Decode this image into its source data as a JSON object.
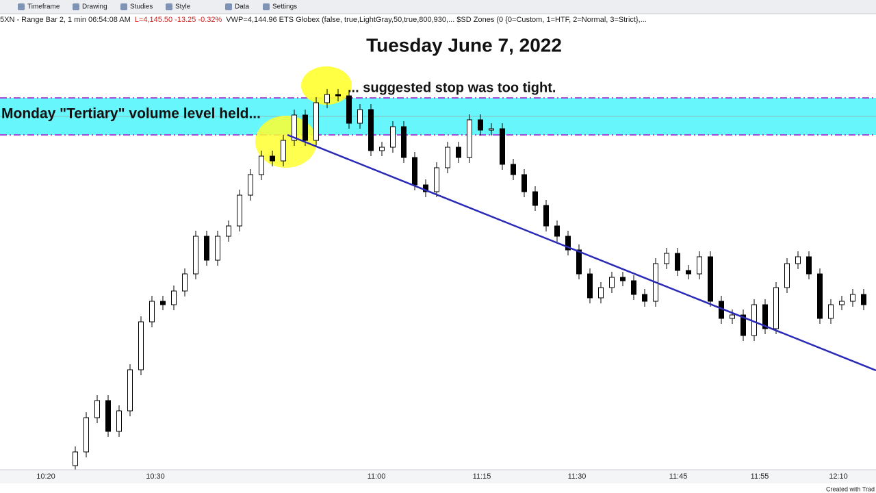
{
  "toolbar": {
    "items": [
      "Timeframe",
      "Drawing",
      "Studies",
      "Style",
      "Data",
      "Settings"
    ]
  },
  "info_bar": {
    "symbol": "5XN - Range Bar 2, 1 min  06:54:08 AM",
    "quote": "L=4,145.50  -13.25  -0.32%",
    "studies": "VWP=4,144.96  ETS Globex (false,  true,LightGray,50,true,800,930,...   $SD Zones (0  {0=Custom, 1=HTF, 2=Normal, 3=Strict},..."
  },
  "chart_data": {
    "type": "candlestick",
    "title": "Tuesday June 7, 2022",
    "annotations": [
      "Monday \"Tertiary\" volume level held...",
      "... suggested stop was too tight."
    ],
    "x_labels": [
      "10:20",
      "10:30",
      "11:00",
      "11:15",
      "11:30",
      "11:45",
      "11:55",
      "12:10"
    ],
    "ylim": [
      4120,
      4180
    ],
    "up_color": "#ffffff",
    "down_color": "#000000",
    "candles": [
      [
        4121.0,
        4123.8,
        4120.2,
        4123.0
      ],
      [
        4123.0,
        4128.8,
        4122.2,
        4128.0
      ],
      [
        4128.0,
        4131.3,
        4127.2,
        4130.5
      ],
      [
        4130.5,
        4131.3,
        4125.2,
        4126.0
      ],
      [
        4126.0,
        4129.8,
        4125.2,
        4129.0
      ],
      [
        4129.0,
        4135.8,
        4128.2,
        4135.0
      ],
      [
        4135.0,
        4142.8,
        4134.2,
        4142.0
      ],
      [
        4142.0,
        4145.8,
        4141.2,
        4145.0
      ],
      [
        4145.0,
        4145.8,
        4143.7,
        4144.5
      ],
      [
        4144.5,
        4147.3,
        4143.7,
        4146.5
      ],
      [
        4146.5,
        4149.8,
        4145.7,
        4149.0
      ],
      [
        4149.0,
        4155.3,
        4148.2,
        4154.5
      ],
      [
        4154.5,
        4155.3,
        4150.2,
        4151.0
      ],
      [
        4151.0,
        4155.3,
        4150.2,
        4154.5
      ],
      [
        4154.5,
        4156.8,
        4153.7,
        4156.0
      ],
      [
        4156.0,
        4161.3,
        4155.2,
        4160.5
      ],
      [
        4160.5,
        4164.3,
        4159.7,
        4163.5
      ],
      [
        4163.5,
        4167.0,
        4162.7,
        4166.2
      ],
      [
        4166.2,
        4167.0,
        4164.7,
        4165.5
      ],
      [
        4165.5,
        4169.3,
        4164.7,
        4168.5
      ],
      [
        4168.5,
        4173.0,
        4167.7,
        4172.2
      ],
      [
        4172.2,
        4173.0,
        4167.7,
        4168.5
      ],
      [
        4168.5,
        4174.8,
        4167.7,
        4174.0
      ],
      [
        4174.0,
        4176.0,
        4173.2,
        4175.2
      ],
      [
        4175.2,
        4176.0,
        4174.2,
        4175.0
      ],
      [
        4175.0,
        4175.8,
        4170.2,
        4171.0
      ],
      [
        4171.0,
        4173.8,
        4170.2,
        4173.0
      ],
      [
        4173.0,
        4173.8,
        4166.2,
        4167.0
      ],
      [
        4167.0,
        4168.3,
        4166.2,
        4167.5
      ],
      [
        4167.5,
        4171.3,
        4166.7,
        4170.5
      ],
      [
        4170.5,
        4171.3,
        4165.2,
        4166.0
      ],
      [
        4166.0,
        4166.8,
        4161.2,
        4162.0
      ],
      [
        4162.0,
        4162.8,
        4160.2,
        4161.0
      ],
      [
        4161.0,
        4165.3,
        4160.2,
        4164.5
      ],
      [
        4164.5,
        4168.3,
        4163.7,
        4167.5
      ],
      [
        4167.5,
        4168.3,
        4165.2,
        4166.0
      ],
      [
        4166.0,
        4172.3,
        4165.2,
        4171.5
      ],
      [
        4171.5,
        4172.3,
        4169.2,
        4170.0
      ],
      [
        4170.0,
        4171.0,
        4169.2,
        4170.2
      ],
      [
        4170.2,
        4171.0,
        4164.2,
        4165.0
      ],
      [
        4165.0,
        4165.8,
        4162.7,
        4163.5
      ],
      [
        4163.5,
        4164.3,
        4160.2,
        4161.0
      ],
      [
        4161.0,
        4161.8,
        4158.2,
        4159.0
      ],
      [
        4159.0,
        4159.8,
        4155.2,
        4156.0
      ],
      [
        4156.0,
        4156.8,
        4153.7,
        4154.5
      ],
      [
        4154.5,
        4155.3,
        4151.7,
        4152.5
      ],
      [
        4152.5,
        4153.3,
        4148.2,
        4149.0
      ],
      [
        4149.0,
        4149.8,
        4144.7,
        4145.5
      ],
      [
        4145.5,
        4147.8,
        4144.7,
        4147.0
      ],
      [
        4147.0,
        4149.3,
        4146.2,
        4148.5
      ],
      [
        4148.5,
        4149.3,
        4147.2,
        4148.0
      ],
      [
        4148.0,
        4148.8,
        4145.2,
        4146.0
      ],
      [
        4146.0,
        4146.8,
        4144.2,
        4145.0
      ],
      [
        4145.0,
        4151.3,
        4144.2,
        4150.5
      ],
      [
        4150.5,
        4152.8,
        4149.7,
        4152.0
      ],
      [
        4152.0,
        4152.8,
        4148.7,
        4149.5
      ],
      [
        4149.5,
        4150.3,
        4148.2,
        4149.0
      ],
      [
        4149.0,
        4152.3,
        4148.2,
        4151.5
      ],
      [
        4151.5,
        4152.3,
        4144.2,
        4145.0
      ],
      [
        4145.0,
        4145.8,
        4141.7,
        4142.5
      ],
      [
        4142.5,
        4143.8,
        4141.7,
        4143.0
      ],
      [
        4143.0,
        4143.8,
        4139.2,
        4140.0
      ],
      [
        4140.0,
        4145.3,
        4139.2,
        4144.5
      ],
      [
        4144.5,
        4145.3,
        4140.2,
        4141.0
      ],
      [
        4141.0,
        4147.8,
        4140.2,
        4147.0
      ],
      [
        4147.0,
        4151.3,
        4146.2,
        4150.5
      ],
      [
        4150.5,
        4152.3,
        4149.7,
        4151.5
      ],
      [
        4151.5,
        4152.3,
        4148.2,
        4149.0
      ],
      [
        4149.0,
        4149.8,
        4141.7,
        4142.5
      ],
      [
        4142.5,
        4145.3,
        4141.7,
        4144.5
      ],
      [
        4144.5,
        4145.8,
        4143.7,
        4145.0
      ],
      [
        4145.0,
        4146.8,
        4144.2,
        4146.0
      ],
      [
        4146.0,
        4146.8,
        4143.7,
        4144.5
      ]
    ]
  },
  "footer": "Created with Trad"
}
